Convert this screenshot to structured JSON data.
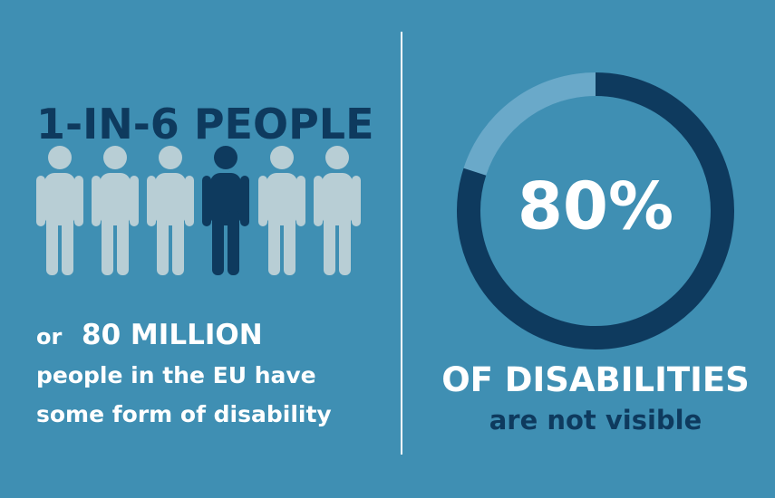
{
  "left": {
    "headline": "1-IN-6 PEOPLE",
    "prefix": "or",
    "highlight": "80 MILLION",
    "line1": "people in the EU have",
    "line2": "some form of disability"
  },
  "right": {
    "donut": {
      "value": 80,
      "value_label": "80%"
    },
    "caption": "OF DISABILITIES",
    "subcaption": "are not visible"
  }
}
